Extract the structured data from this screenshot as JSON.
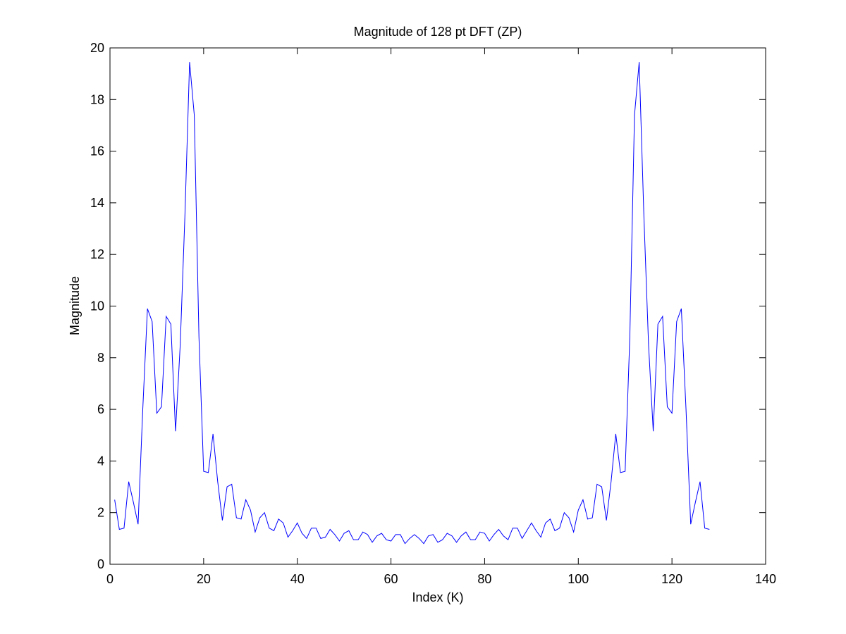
{
  "chart_data": {
    "type": "line",
    "title": "Magnitude of 128 pt DFT (ZP)",
    "xlabel": "Index (K)",
    "ylabel": "Magnitude",
    "xlim": [
      0,
      140
    ],
    "ylim": [
      0,
      20
    ],
    "xticks": [
      0,
      20,
      40,
      60,
      80,
      100,
      120,
      140
    ],
    "yticks": [
      0,
      2,
      4,
      6,
      8,
      10,
      12,
      14,
      16,
      18,
      20
    ],
    "xtick_labels": [
      "0",
      "20",
      "40",
      "60",
      "80",
      "100",
      "120",
      "140"
    ],
    "ytick_labels": [
      "0",
      "2",
      "4",
      "6",
      "8",
      "10",
      "12",
      "14",
      "16",
      "18",
      "20"
    ],
    "grid": false,
    "series": [
      {
        "color": "#0000ff",
        "x": [
          1,
          2,
          3,
          4,
          5,
          6,
          7,
          8,
          9,
          10,
          11,
          12,
          13,
          14,
          15,
          16,
          17,
          18,
          19,
          20,
          21,
          22,
          23,
          24,
          25,
          26,
          27,
          28,
          29,
          30,
          31,
          32,
          33,
          34,
          35,
          36,
          37,
          38,
          39,
          40,
          41,
          42,
          43,
          44,
          45,
          46,
          47,
          48,
          49,
          50,
          51,
          52,
          53,
          54,
          55,
          56,
          57,
          58,
          59,
          60,
          61,
          62,
          63,
          64,
          65,
          66,
          67,
          68,
          69,
          70,
          71,
          72,
          73,
          74,
          75,
          76,
          77,
          78,
          79,
          80,
          81,
          82,
          83,
          84,
          85,
          86,
          87,
          88,
          89,
          90,
          91,
          92,
          93,
          94,
          95,
          96,
          97,
          98,
          99,
          100,
          101,
          102,
          103,
          104,
          105,
          106,
          107,
          108,
          109,
          110,
          111,
          112,
          113,
          114,
          115,
          116,
          117,
          118,
          119,
          120,
          121,
          122,
          123,
          124,
          125,
          126,
          127,
          128
        ],
        "y": [
          2.5,
          1.35,
          1.4,
          3.2,
          2.4,
          1.55,
          6.0,
          9.9,
          9.4,
          5.85,
          6.1,
          9.6,
          9.3,
          5.15,
          8.5,
          13.5,
          19.45,
          17.4,
          8.8,
          3.6,
          3.55,
          5.05,
          3.2,
          1.7,
          3.0,
          3.1,
          1.8,
          1.75,
          2.5,
          2.1,
          1.25,
          1.8,
          2.0,
          1.4,
          1.3,
          1.75,
          1.6,
          1.05,
          1.3,
          1.6,
          1.2,
          1.0,
          1.4,
          1.4,
          1.0,
          1.05,
          1.35,
          1.15,
          0.9,
          1.2,
          1.3,
          0.95,
          0.95,
          1.25,
          1.15,
          0.85,
          1.1,
          1.2,
          0.95,
          0.9,
          1.15,
          1.15,
          0.8,
          1.0,
          1.15,
          1.0,
          0.8,
          1.1,
          1.15,
          0.85,
          0.95,
          1.2,
          1.1,
          0.85,
          1.1,
          1.25,
          0.95,
          0.95,
          1.25,
          1.2,
          0.9,
          1.15,
          1.35,
          1.1,
          0.95,
          1.4,
          1.4,
          1.0,
          1.3,
          1.6,
          1.3,
          1.05,
          1.6,
          1.75,
          1.3,
          1.4,
          2.0,
          1.8,
          1.25,
          2.1,
          2.5,
          1.75,
          1.8,
          3.1,
          3.0,
          1.7,
          3.2,
          5.05,
          3.55,
          3.6,
          8.8,
          17.4,
          19.45,
          13.5,
          8.5,
          5.15,
          9.3,
          9.6,
          6.1,
          5.85,
          9.4,
          9.9,
          6.0,
          1.55,
          2.4,
          3.2,
          1.4,
          1.35
        ]
      }
    ]
  }
}
